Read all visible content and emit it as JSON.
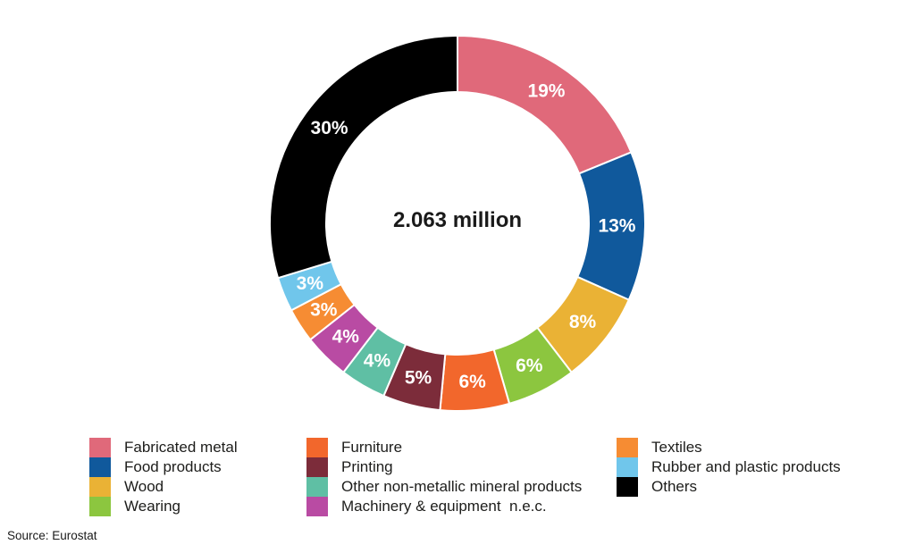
{
  "chart_data": {
    "type": "pie",
    "subtype": "donut",
    "center_label": "2.063 million",
    "start_angle_deg": 0,
    "direction": "clockwise",
    "legend_position": "bottom",
    "series": [
      {
        "label": "Fabricated metal",
        "pct": 19,
        "pct_label": "19%",
        "color": "#E0697A"
      },
      {
        "label": "Food products",
        "pct": 13,
        "pct_label": "13%",
        "color": "#10599C"
      },
      {
        "label": "Wood",
        "pct": 8,
        "pct_label": "8%",
        "color": "#EAB235"
      },
      {
        "label": "Wearing",
        "pct": 6,
        "pct_label": "6%",
        "color": "#8CC63F"
      },
      {
        "label": "Furniture",
        "pct": 6,
        "pct_label": "6%",
        "color": "#F2672C"
      },
      {
        "label": "Printing",
        "pct": 5,
        "pct_label": "5%",
        "color": "#7C2C3A"
      },
      {
        "label": "Other non-metallic mineral products",
        "pct": 4,
        "pct_label": "4%",
        "color": "#5FBFA4"
      },
      {
        "label": "Machinery & equipment  n.e.c.",
        "pct": 4,
        "pct_label": "4%",
        "color": "#B94BA3"
      },
      {
        "label": "Textiles",
        "pct": 3,
        "pct_label": "3%",
        "color": "#F68C33"
      },
      {
        "label": "Rubber and plastic products",
        "pct": 3,
        "pct_label": "3%",
        "color": "#70C6EB"
      },
      {
        "label": "Others",
        "pct": 30,
        "pct_label": "30%",
        "color": "#000000"
      }
    ],
    "legend_columns": [
      [
        0,
        1,
        2,
        3
      ],
      [
        4,
        5,
        6,
        7
      ],
      [
        8,
        9,
        10
      ]
    ]
  },
  "source": {
    "label": "Source: Eurostat"
  }
}
